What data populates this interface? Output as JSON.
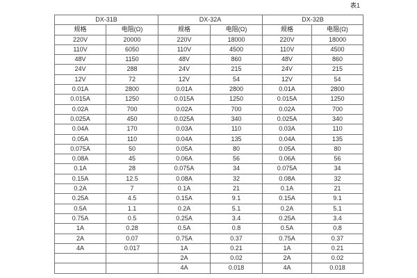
{
  "page_label": "表1",
  "table": {
    "groups": [
      {
        "title": "DX-31B",
        "spec_header": "规格",
        "resistance_header": "电阻(Ω)",
        "rows": [
          [
            "220V",
            "20000"
          ],
          [
            "110V",
            "6050"
          ],
          [
            "48V",
            "1150"
          ],
          [
            "24V",
            "288"
          ],
          [
            "12V",
            "72"
          ],
          [
            "0.01A",
            "2800"
          ],
          [
            "0.015A",
            "1250"
          ],
          [
            "0.02A",
            "700"
          ],
          [
            "0.025A",
            "450"
          ],
          [
            "0.04A",
            "170"
          ],
          [
            "0.05A",
            "110"
          ],
          [
            "0.075A",
            "50"
          ],
          [
            "0.08A",
            "45"
          ],
          [
            "0.1A",
            "28"
          ],
          [
            "0.15A",
            "12.5"
          ],
          [
            "0.2A",
            "7"
          ],
          [
            "0.25A",
            "4.5"
          ],
          [
            "0.5A",
            "1.1"
          ],
          [
            "0.75A",
            "0.5"
          ],
          [
            "1A",
            "0.28"
          ],
          [
            "2A",
            "0.07"
          ],
          [
            "4A",
            "0.017"
          ],
          [
            "",
            ""
          ],
          [
            "",
            ""
          ]
        ]
      },
      {
        "title": "DX-32A",
        "spec_header": "规格",
        "resistance_header": "电阻(Ω)",
        "rows": [
          [
            "220V",
            "18000"
          ],
          [
            "110V",
            "4500"
          ],
          [
            "48V",
            "860"
          ],
          [
            "24V",
            "215"
          ],
          [
            "12V",
            "54"
          ],
          [
            "0.01A",
            "2800"
          ],
          [
            "0.015A",
            "1250"
          ],
          [
            "0.02A",
            "700"
          ],
          [
            "0.025A",
            "340"
          ],
          [
            "0.03A",
            "110"
          ],
          [
            "0.04A",
            "135"
          ],
          [
            "0.05A",
            "80"
          ],
          [
            "0.06A",
            "56"
          ],
          [
            "0.075A",
            "34"
          ],
          [
            "0.08A",
            "32"
          ],
          [
            "0.1A",
            "21"
          ],
          [
            "0.15A",
            "9.1"
          ],
          [
            "0.2A",
            "5.1"
          ],
          [
            "0.25A",
            "3.4"
          ],
          [
            "0.5A",
            "0.8"
          ],
          [
            "0.75A",
            "0.37"
          ],
          [
            "1A",
            "0.21"
          ],
          [
            "2A",
            "0.02"
          ],
          [
            "4A",
            "0.018"
          ]
        ]
      },
      {
        "title": "DX-32B",
        "spec_header": "规格",
        "resistance_header": "电阻(Ω)",
        "rows": [
          [
            "220V",
            "18000"
          ],
          [
            "110V",
            "4500"
          ],
          [
            "48V",
            "860"
          ],
          [
            "24V",
            "215"
          ],
          [
            "12V",
            "54"
          ],
          [
            "0.01A",
            "2800"
          ],
          [
            "0.015A",
            "1250"
          ],
          [
            "0.02A",
            "700"
          ],
          [
            "0.025A",
            "340"
          ],
          [
            "0.03A",
            "110"
          ],
          [
            "0.04A",
            "135"
          ],
          [
            "0.05A",
            "80"
          ],
          [
            "0.06A",
            "56"
          ],
          [
            "0.075A",
            "34"
          ],
          [
            "0.08A",
            "32"
          ],
          [
            "0.1A",
            "21"
          ],
          [
            "0.15A",
            "9.1"
          ],
          [
            "0.2A",
            "5.1"
          ],
          [
            "0.25A",
            "3.4"
          ],
          [
            "0.5A",
            "0.8"
          ],
          [
            "0.75A",
            "0.37"
          ],
          [
            "1A",
            "0.21"
          ],
          [
            "2A",
            "0.02"
          ],
          [
            "4A",
            "0.018"
          ]
        ]
      }
    ]
  }
}
